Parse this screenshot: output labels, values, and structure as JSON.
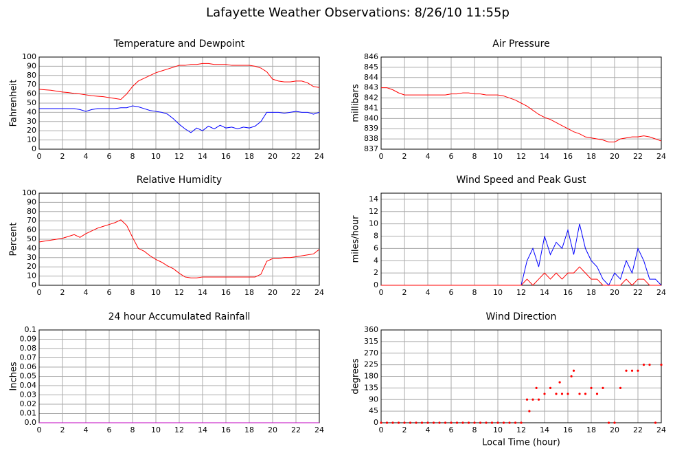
{
  "title": "Lafayette Weather Observations: 8/26/10 11:55p",
  "chart_data": [
    {
      "type": "line",
      "title": "Temperature and Dewpoint",
      "y_label": "Fahrenheit",
      "grid": true,
      "xlim": [
        0,
        24
      ],
      "xticks": [
        0,
        2,
        4,
        6,
        8,
        10,
        12,
        14,
        16,
        18,
        20,
        22,
        24
      ],
      "ylim": [
        0,
        100
      ],
      "yticks": [
        0,
        10,
        20,
        30,
        40,
        50,
        60,
        70,
        80,
        90,
        100
      ],
      "x": [
        0,
        0.5,
        1,
        1.5,
        2,
        2.5,
        3,
        3.5,
        4,
        4.5,
        5,
        5.5,
        6,
        6.5,
        7,
        7.5,
        8,
        8.5,
        9,
        9.5,
        10,
        10.5,
        11,
        11.5,
        12,
        12.5,
        13,
        13.5,
        14,
        14.5,
        15,
        15.5,
        16,
        16.5,
        17,
        17.5,
        18,
        18.5,
        19,
        19.5,
        20,
        20.5,
        21,
        21.5,
        22,
        22.5,
        23,
        23.5,
        24
      ],
      "series": [
        {
          "color": "#ff0000",
          "values": [
            65,
            64.5,
            64,
            63,
            62,
            61.5,
            60.5,
            60,
            59,
            58,
            57.5,
            57,
            56,
            55,
            54,
            60,
            68,
            74,
            77,
            80,
            83,
            85,
            87,
            89,
            91,
            91,
            92,
            92,
            93,
            93,
            92,
            92,
            92,
            91,
            91,
            91,
            91,
            90,
            88,
            84,
            76,
            74,
            73,
            73,
            74,
            74,
            72,
            68,
            67
          ]
        },
        {
          "color": "#0000ff",
          "values": [
            44,
            44,
            44,
            44,
            44,
            44,
            44,
            43,
            41,
            43,
            44,
            44,
            44,
            44,
            45,
            45,
            47,
            46,
            44,
            42,
            41,
            40,
            38,
            33,
            27,
            22,
            18,
            23,
            20,
            25,
            22,
            26,
            23,
            24,
            22,
            24,
            23,
            25,
            30,
            40,
            40,
            40,
            39,
            40,
            41,
            40,
            40,
            38,
            40
          ]
        }
      ]
    },
    {
      "type": "line",
      "title": "Air Pressure",
      "y_label": "millibars",
      "grid": true,
      "xlim": [
        0,
        24
      ],
      "xticks": [
        0,
        2,
        4,
        6,
        8,
        10,
        12,
        14,
        16,
        18,
        20,
        22,
        24
      ],
      "ylim": [
        837,
        846
      ],
      "yticks": [
        837,
        838,
        839,
        840,
        841,
        842,
        843,
        844,
        845,
        846
      ],
      "x": [
        0,
        0.5,
        1,
        1.5,
        2,
        2.5,
        3,
        3.5,
        4,
        4.5,
        5,
        5.5,
        6,
        6.5,
        7,
        7.5,
        8,
        8.5,
        9,
        9.5,
        10,
        10.5,
        11,
        11.5,
        12,
        12.5,
        13,
        13.5,
        14,
        14.5,
        15,
        15.5,
        16,
        16.5,
        17,
        17.5,
        18,
        18.5,
        19,
        19.5,
        20,
        20.5,
        21,
        21.5,
        22,
        22.5,
        23,
        23.5,
        24
      ],
      "series": [
        {
          "color": "#ff0000",
          "values": [
            843,
            843,
            842.8,
            842.5,
            842.3,
            842.3,
            842.3,
            842.3,
            842.3,
            842.3,
            842.3,
            842.3,
            842.4,
            842.4,
            842.5,
            842.5,
            842.4,
            842.4,
            842.3,
            842.3,
            842.3,
            842.2,
            842,
            841.8,
            841.5,
            841.2,
            840.8,
            840.4,
            840.1,
            839.9,
            839.6,
            839.3,
            839,
            838.7,
            838.5,
            838.2,
            838.1,
            838,
            837.9,
            837.7,
            837.7,
            838,
            838.1,
            838.2,
            838.2,
            838.3,
            838.2,
            838,
            837.8
          ]
        }
      ]
    },
    {
      "type": "line",
      "title": "Relative Humidity",
      "y_label": "Percent",
      "grid": true,
      "xlim": [
        0,
        24
      ],
      "xticks": [
        0,
        2,
        4,
        6,
        8,
        10,
        12,
        14,
        16,
        18,
        20,
        22,
        24
      ],
      "ylim": [
        0,
        100
      ],
      "yticks": [
        0,
        10,
        20,
        30,
        40,
        50,
        60,
        70,
        80,
        90,
        100
      ],
      "x": [
        0,
        0.5,
        1,
        1.5,
        2,
        2.5,
        3,
        3.5,
        4,
        4.5,
        5,
        5.5,
        6,
        6.5,
        7,
        7.5,
        8,
        8.5,
        9,
        9.5,
        10,
        10.5,
        11,
        11.5,
        12,
        12.5,
        13,
        13.5,
        14,
        14.5,
        15,
        15.5,
        16,
        16.5,
        17,
        17.5,
        18,
        18.5,
        19,
        19.5,
        20,
        20.5,
        21,
        21.5,
        22,
        22.5,
        23,
        23.5,
        24
      ],
      "series": [
        {
          "color": "#ff0000",
          "values": [
            47,
            48,
            49,
            50,
            51,
            53,
            55,
            52,
            56,
            59,
            62,
            64,
            66,
            68,
            71,
            65,
            52,
            40,
            37,
            32,
            28,
            25,
            21,
            18,
            13,
            9,
            8,
            8,
            9,
            9,
            9,
            9,
            9,
            9,
            9,
            9,
            9,
            9,
            12,
            26,
            29,
            29,
            30,
            30,
            31,
            32,
            33,
            34,
            39
          ]
        }
      ]
    },
    {
      "type": "line",
      "title": "Wind Speed and Peak Gust",
      "y_label": "miles/hour",
      "grid": true,
      "xlim": [
        0,
        24
      ],
      "xticks": [
        0,
        2,
        4,
        6,
        8,
        10,
        12,
        14,
        16,
        18,
        20,
        22,
        24
      ],
      "ylim": [
        0,
        15
      ],
      "yticks": [
        0,
        2,
        4,
        6,
        8,
        10,
        12,
        14
      ],
      "x": [
        0,
        0.5,
        1,
        1.5,
        2,
        2.5,
        3,
        3.5,
        4,
        4.5,
        5,
        5.5,
        6,
        6.5,
        7,
        7.5,
        8,
        8.5,
        9,
        9.5,
        10,
        10.5,
        11,
        11.5,
        12,
        12.5,
        13,
        13.5,
        14,
        14.5,
        15,
        15.5,
        16,
        16.5,
        17,
        17.5,
        18,
        18.5,
        19,
        19.5,
        20,
        20.5,
        21,
        21.5,
        22,
        22.5,
        23,
        23.5,
        24
      ],
      "series": [
        {
          "color": "#0000ff",
          "values": [
            0,
            0,
            0,
            0,
            0,
            0,
            0,
            0,
            0,
            0,
            0,
            0,
            0,
            0,
            0,
            0,
            0,
            0,
            0,
            0,
            0,
            0,
            0,
            0,
            0,
            4,
            6,
            3,
            8,
            5,
            7,
            6,
            9,
            5,
            10,
            6,
            4,
            3,
            1,
            0,
            2,
            1,
            4,
            2,
            6,
            4,
            1,
            1,
            0
          ]
        },
        {
          "color": "#ff0000",
          "values": [
            0,
            0,
            0,
            0,
            0,
            0,
            0,
            0,
            0,
            0,
            0,
            0,
            0,
            0,
            0,
            0,
            0,
            0,
            0,
            0,
            0,
            0,
            0,
            0,
            0,
            1,
            0,
            1,
            2,
            1,
            2,
            1,
            2,
            2,
            3,
            2,
            1,
            1,
            0,
            0,
            0,
            0,
            1,
            0,
            1,
            1,
            0,
            0,
            0
          ]
        }
      ]
    },
    {
      "type": "line",
      "title": "24 hour Accumulated Rainfall",
      "y_label": "Inches",
      "grid": true,
      "xlim": [
        0,
        24
      ],
      "xticks": [
        0,
        2,
        4,
        6,
        8,
        10,
        12,
        14,
        16,
        18,
        20,
        22,
        24
      ],
      "ylim": [
        0,
        0.1
      ],
      "yticks": [
        {
          "value": 0,
          "label": "0.0"
        },
        0.01,
        0.02,
        0.03,
        0.04,
        0.05,
        0.06,
        0.07,
        0.08,
        0.09,
        0.1
      ],
      "x": [
        0,
        24
      ],
      "series": [
        {
          "color": "#c000c0",
          "values": [
            0,
            0
          ]
        }
      ]
    },
    {
      "type": "scatter",
      "title": "Wind Direction",
      "y_label": "degrees",
      "x_label": "Local Time (hour)",
      "grid": true,
      "xlim": [
        0,
        24
      ],
      "xticks": [
        0,
        2,
        4,
        6,
        8,
        10,
        12,
        14,
        16,
        18,
        20,
        22,
        24
      ],
      "ylim": [
        0,
        360
      ],
      "yticks": [
        0,
        45,
        90,
        135,
        180,
        225,
        270,
        315,
        360
      ],
      "x": [
        0,
        0.5,
        1,
        1.5,
        2,
        2.5,
        3,
        3.5,
        4,
        4.5,
        5,
        5.5,
        6,
        6.5,
        7,
        7.5,
        8,
        8.5,
        9,
        9.5,
        10,
        10.5,
        11,
        11.5,
        12,
        12.5,
        12.7,
        13,
        13.3,
        13.5,
        14,
        14.5,
        15,
        15.3,
        15.5,
        16,
        16.3,
        16.5,
        17,
        17.5,
        18,
        18.5,
        19,
        19.5,
        20,
        20.5,
        21,
        21.5,
        22,
        22.5,
        23,
        23.5,
        24
      ],
      "series": [
        {
          "color": "#ff0000",
          "values": [
            0,
            0,
            0,
            0,
            0,
            0,
            0,
            0,
            0,
            0,
            0,
            0,
            0,
            0,
            0,
            0,
            0,
            0,
            0,
            0,
            0,
            0,
            0,
            0,
            0,
            90,
            45,
            90,
            135,
            90,
            112,
            135,
            112,
            157,
            112,
            112,
            180,
            202,
            112,
            112,
            135,
            112,
            135,
            0,
            0,
            135,
            202,
            202,
            202,
            225,
            225,
            0,
            225
          ]
        }
      ]
    }
  ]
}
